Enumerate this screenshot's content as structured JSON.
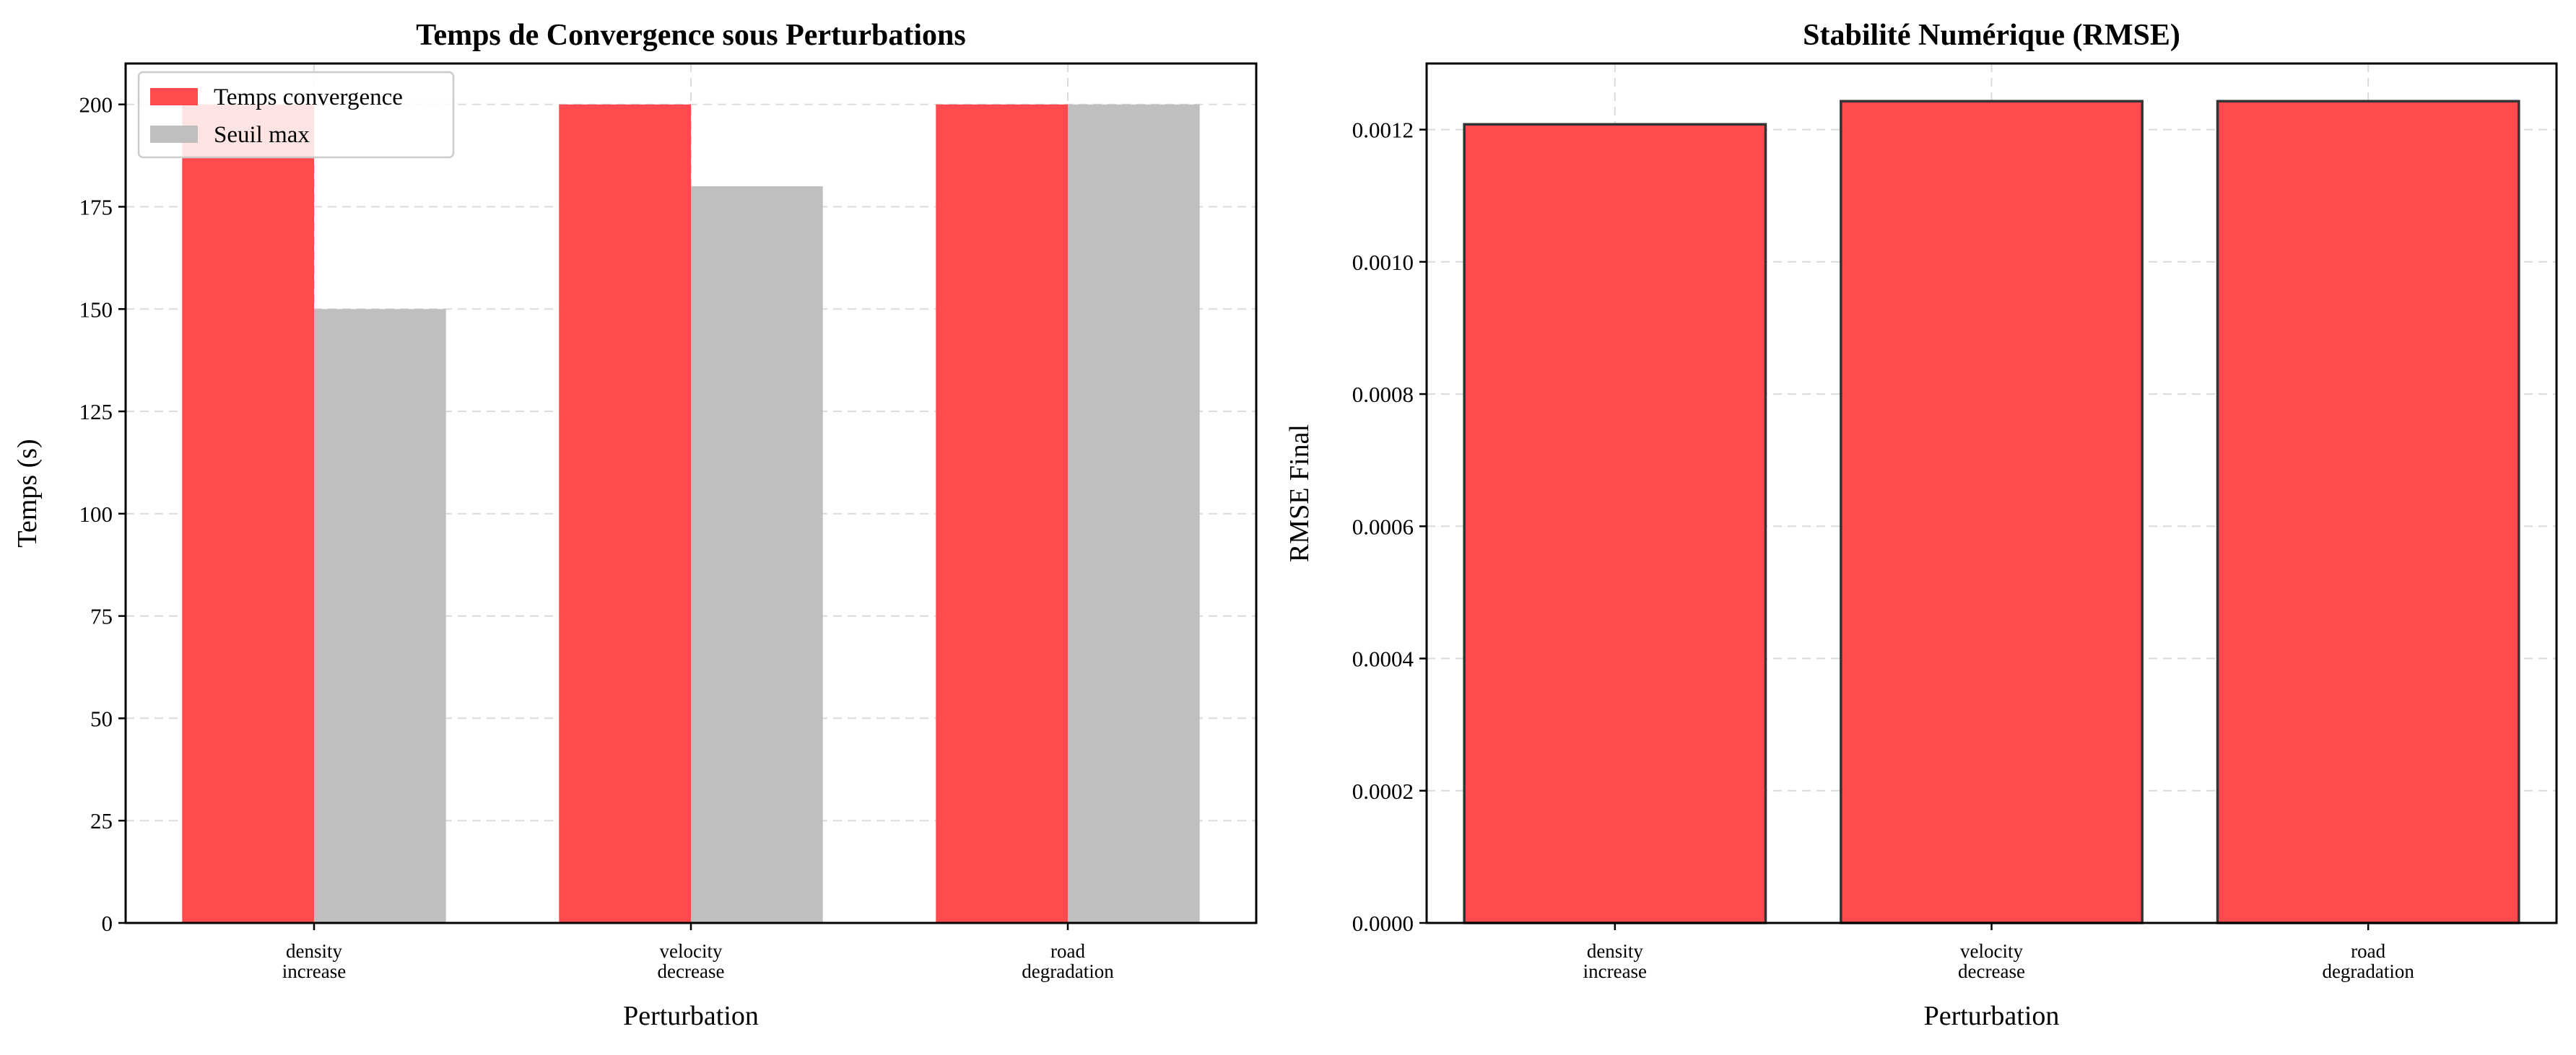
{
  "chart_data": [
    {
      "type": "bar",
      "title": "Temps de Convergence sous Perturbations",
      "xlabel": "Perturbation",
      "ylabel": "Temps (s)",
      "categories": [
        [
          "density",
          "increase"
        ],
        [
          "velocity",
          "decrease"
        ],
        [
          "road",
          "degradation"
        ]
      ],
      "ylim": [
        0,
        210
      ],
      "yticks": [
        0,
        25,
        50,
        75,
        100,
        125,
        150,
        175,
        200
      ],
      "ytick_labels": [
        "0",
        "25",
        "50",
        "75",
        "100",
        "125",
        "150",
        "175",
        "200"
      ],
      "grid": true,
      "legend_position": "top-left",
      "series": [
        {
          "name": "Temps convergence",
          "values": [
            200,
            200,
            200
          ],
          "color": "#ff4b4e"
        },
        {
          "name": "Seuil max",
          "values": [
            150,
            180,
            200
          ],
          "color": "#bfbfbf"
        }
      ]
    },
    {
      "type": "bar",
      "title": "Stabilité Numérique (RMSE)",
      "xlabel": "Perturbation",
      "ylabel": "RMSE Final",
      "categories": [
        [
          "density",
          "increase"
        ],
        [
          "velocity",
          "decrease"
        ],
        [
          "road",
          "degradation"
        ]
      ],
      "ylim": [
        0,
        0.0013
      ],
      "yticks": [
        0,
        0.0002,
        0.0004,
        0.0006,
        0.0008,
        0.001,
        0.0012
      ],
      "ytick_labels": [
        "0.0000",
        "0.0002",
        "0.0004",
        "0.0006",
        "0.0008",
        "0.0010",
        "0.0012"
      ],
      "grid": true,
      "series": [
        {
          "values": [
            0.001208,
            0.001243,
            0.001243
          ],
          "color": "#ff4b4e",
          "edgecolor": "#333333"
        }
      ]
    }
  ]
}
